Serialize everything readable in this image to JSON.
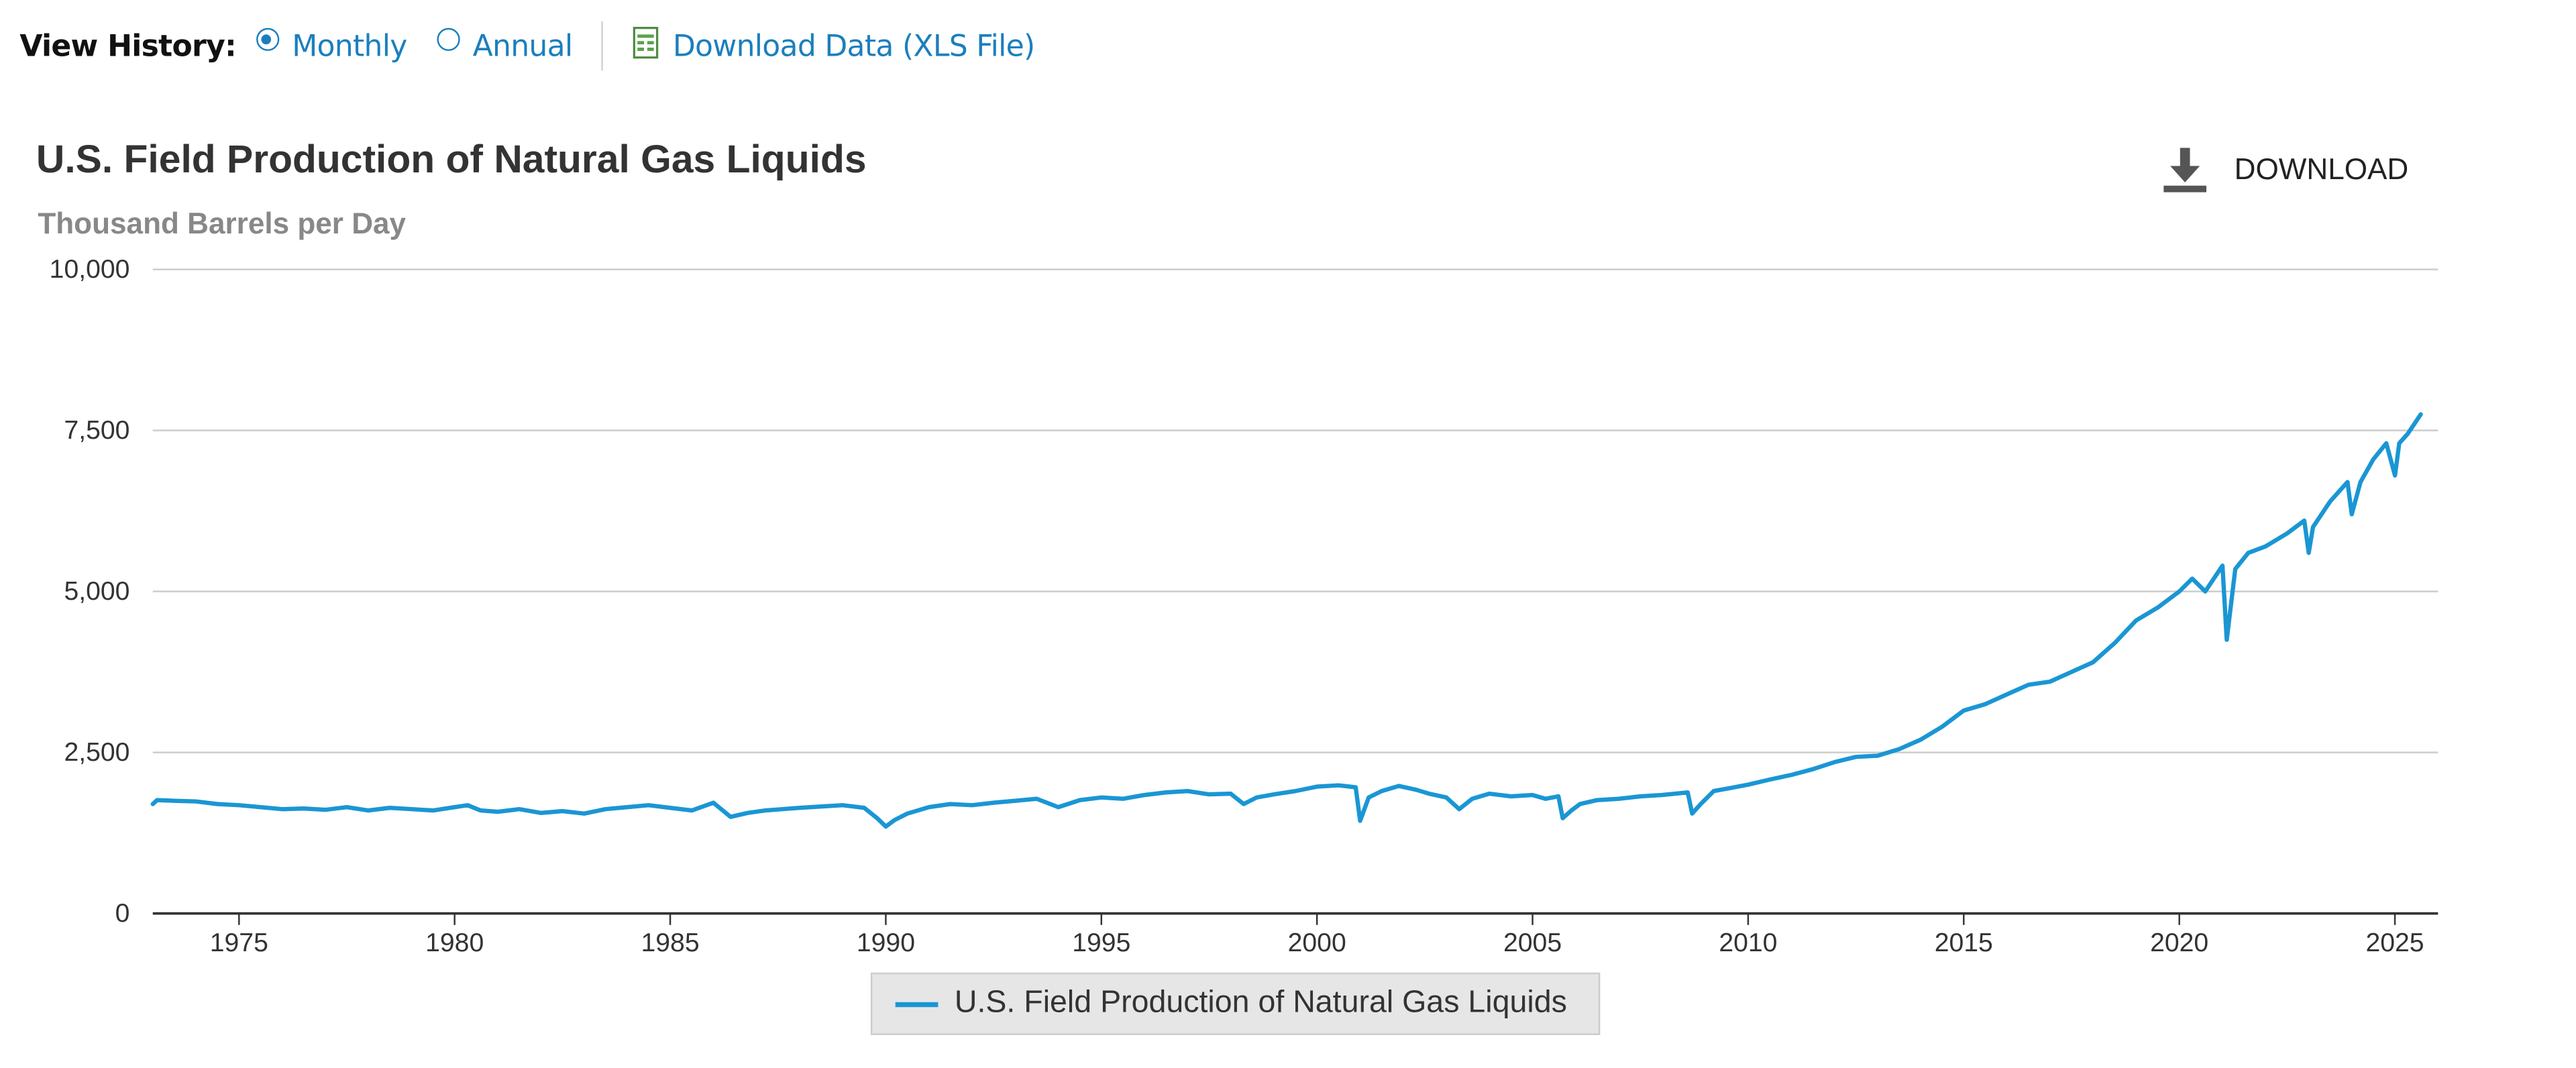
{
  "view_history": {
    "label": "View History:",
    "options": [
      {
        "label": "Monthly",
        "selected": true
      },
      {
        "label": "Annual",
        "selected": false
      }
    ],
    "download_data_label": "Download Data (XLS File)",
    "download_data_icon": "xls-file-icon"
  },
  "download_button": {
    "label": "DOWNLOAD",
    "icon": "download-icon"
  },
  "colors": {
    "series": "#1a96d4",
    "link": "#1b7fbd",
    "grid": "#cccccc",
    "axis": "#333333"
  },
  "chart_data": {
    "type": "line",
    "title": "U.S. Field Production of Natural Gas Liquids",
    "subtitle": "Thousand Barrels per Day",
    "xlabel": "",
    "ylabel": "",
    "xlim": [
      1973.0,
      2026.0
    ],
    "ylim": [
      0,
      10000
    ],
    "yticks": [
      0,
      2500,
      5000,
      7500,
      10000
    ],
    "ytick_labels": [
      "0",
      "2,500",
      "5,000",
      "7,500",
      "10,000"
    ],
    "xticks": [
      1975,
      1980,
      1985,
      1990,
      1995,
      2000,
      2005,
      2010,
      2015,
      2020,
      2025
    ],
    "xtick_labels": [
      "1975",
      "1980",
      "1985",
      "1990",
      "1995",
      "2000",
      "2005",
      "2010",
      "2015",
      "2020",
      "2025"
    ],
    "grid": true,
    "legend_position": "bottom-center",
    "series": [
      {
        "name": "U.S. Field Production of Natural Gas Liquids",
        "x": [
          1973.0,
          1973.1,
          1973.5,
          1974.0,
          1974.5,
          1975.0,
          1975.5,
          1976.0,
          1976.5,
          1977.0,
          1977.5,
          1978.0,
          1978.5,
          1979.0,
          1979.5,
          1980.0,
          1980.3,
          1980.6,
          1981.0,
          1981.5,
          1982.0,
          1982.5,
          1983.0,
          1983.5,
          1984.0,
          1984.5,
          1985.0,
          1985.5,
          1986.0,
          1986.4,
          1986.8,
          1987.2,
          1987.6,
          1988.0,
          1988.5,
          1989.0,
          1989.5,
          1989.8,
          1990.0,
          1990.2,
          1990.5,
          1991.0,
          1991.5,
          1992.0,
          1992.5,
          1993.0,
          1993.5,
          1994.0,
          1994.5,
          1995.0,
          1995.5,
          1996.0,
          1996.5,
          1997.0,
          1997.5,
          1998.0,
          1998.3,
          1998.6,
          1999.0,
          1999.5,
          2000.0,
          2000.5,
          2000.9,
          2001.0,
          2001.2,
          2001.5,
          2001.9,
          2002.3,
          2002.6,
          2003.0,
          2003.3,
          2003.6,
          2004.0,
          2004.5,
          2005.0,
          2005.3,
          2005.6,
          2005.7,
          2005.9,
          2006.1,
          2006.5,
          2007.0,
          2007.5,
          2008.0,
          2008.3,
          2008.6,
          2008.7,
          2008.9,
          2009.2,
          2009.6,
          2010.0,
          2010.5,
          2011.0,
          2011.5,
          2012.0,
          2012.5,
          2013.0,
          2013.5,
          2014.0,
          2014.5,
          2015.0,
          2015.5,
          2016.0,
          2016.5,
          2017.0,
          2017.5,
          2018.0,
          2018.5,
          2019.0,
          2019.5,
          2020.0,
          2020.3,
          2020.6,
          2021.0,
          2021.1,
          2021.3,
          2021.6,
          2022.0,
          2022.5,
          2022.9,
          2023.0,
          2023.1,
          2023.5,
          2023.9,
          2024.0,
          2024.2,
          2024.5,
          2024.8,
          2025.0,
          2025.1,
          2025.3,
          2025.6
        ],
        "values": [
          1700,
          1760,
          1750,
          1740,
          1700,
          1680,
          1650,
          1620,
          1630,
          1610,
          1650,
          1600,
          1640,
          1620,
          1600,
          1650,
          1680,
          1600,
          1580,
          1620,
          1560,
          1590,
          1550,
          1620,
          1650,
          1680,
          1640,
          1600,
          1720,
          1500,
          1560,
          1600,
          1620,
          1640,
          1660,
          1680,
          1640,
          1480,
          1350,
          1450,
          1550,
          1650,
          1700,
          1680,
          1720,
          1750,
          1780,
          1650,
          1760,
          1800,
          1780,
          1840,
          1880,
          1900,
          1850,
          1860,
          1700,
          1800,
          1850,
          1900,
          1970,
          1990,
          1960,
          1440,
          1800,
          1900,
          1980,
          1920,
          1860,
          1800,
          1620,
          1780,
          1860,
          1820,
          1840,
          1780,
          1820,
          1480,
          1600,
          1700,
          1760,
          1780,
          1820,
          1840,
          1860,
          1880,
          1550,
          1700,
          1900,
          1950,
          2000,
          2080,
          2150,
          2240,
          2350,
          2430,
          2450,
          2550,
          2700,
          2900,
          3150,
          3250,
          3400,
          3550,
          3600,
          3750,
          3900,
          4200,
          4550,
          4750,
          5000,
          5200,
          5000,
          5400,
          4250,
          5350,
          5600,
          5700,
          5900,
          6100,
          5600,
          6000,
          6400,
          6700,
          6200,
          6700,
          7050,
          7300,
          6800,
          7300,
          7450,
          7750
        ]
      }
    ]
  }
}
